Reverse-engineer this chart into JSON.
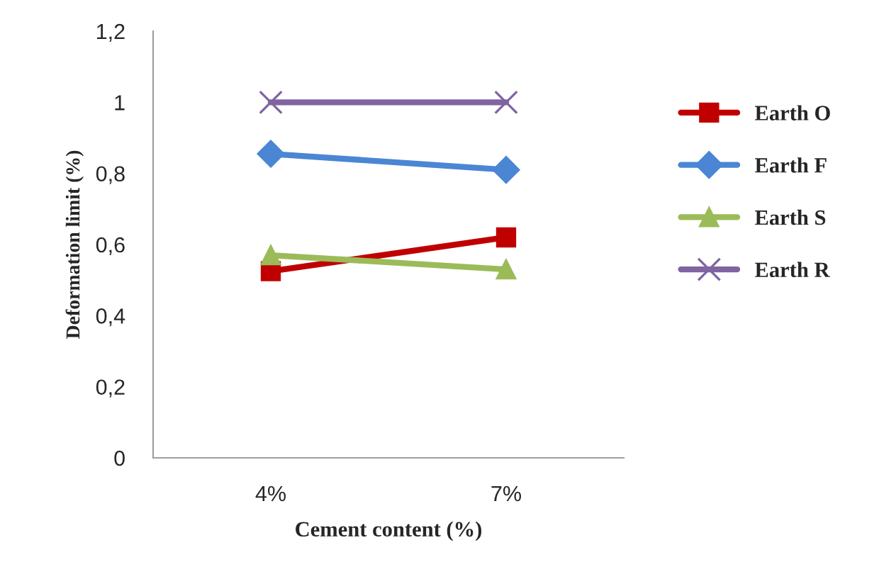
{
  "chart_data": {
    "type": "line",
    "xlabel": "Cement content (%)",
    "ylabel": "Deformation limit (%)",
    "categories": [
      "4%",
      "7%"
    ],
    "series": [
      {
        "name": "Earth O",
        "color": "#c00000",
        "marker": "square",
        "values": [
          0.525,
          0.62
        ]
      },
      {
        "name": "Earth F",
        "color": "#4a86d4",
        "marker": "diamond",
        "values": [
          0.855,
          0.81
        ]
      },
      {
        "name": "Earth S",
        "color": "#9bbb59",
        "marker": "triangle",
        "values": [
          0.57,
          0.53
        ]
      },
      {
        "name": "Earth R",
        "color": "#8064a2",
        "marker": "cross",
        "values": [
          1,
          1
        ]
      }
    ],
    "ylim": [
      0,
      1.2
    ],
    "yticks": [
      {
        "value": 0,
        "label": "0"
      },
      {
        "value": 0.2,
        "label": "0,2"
      },
      {
        "value": 0.4,
        "label": "0,4"
      },
      {
        "value": 0.6,
        "label": "0,6"
      },
      {
        "value": 0.8,
        "label": "0,8"
      },
      {
        "value": 1,
        "label": "1"
      },
      {
        "value": 1.2,
        "label": "1,2"
      }
    ],
    "grid": false,
    "legend": "right"
  }
}
